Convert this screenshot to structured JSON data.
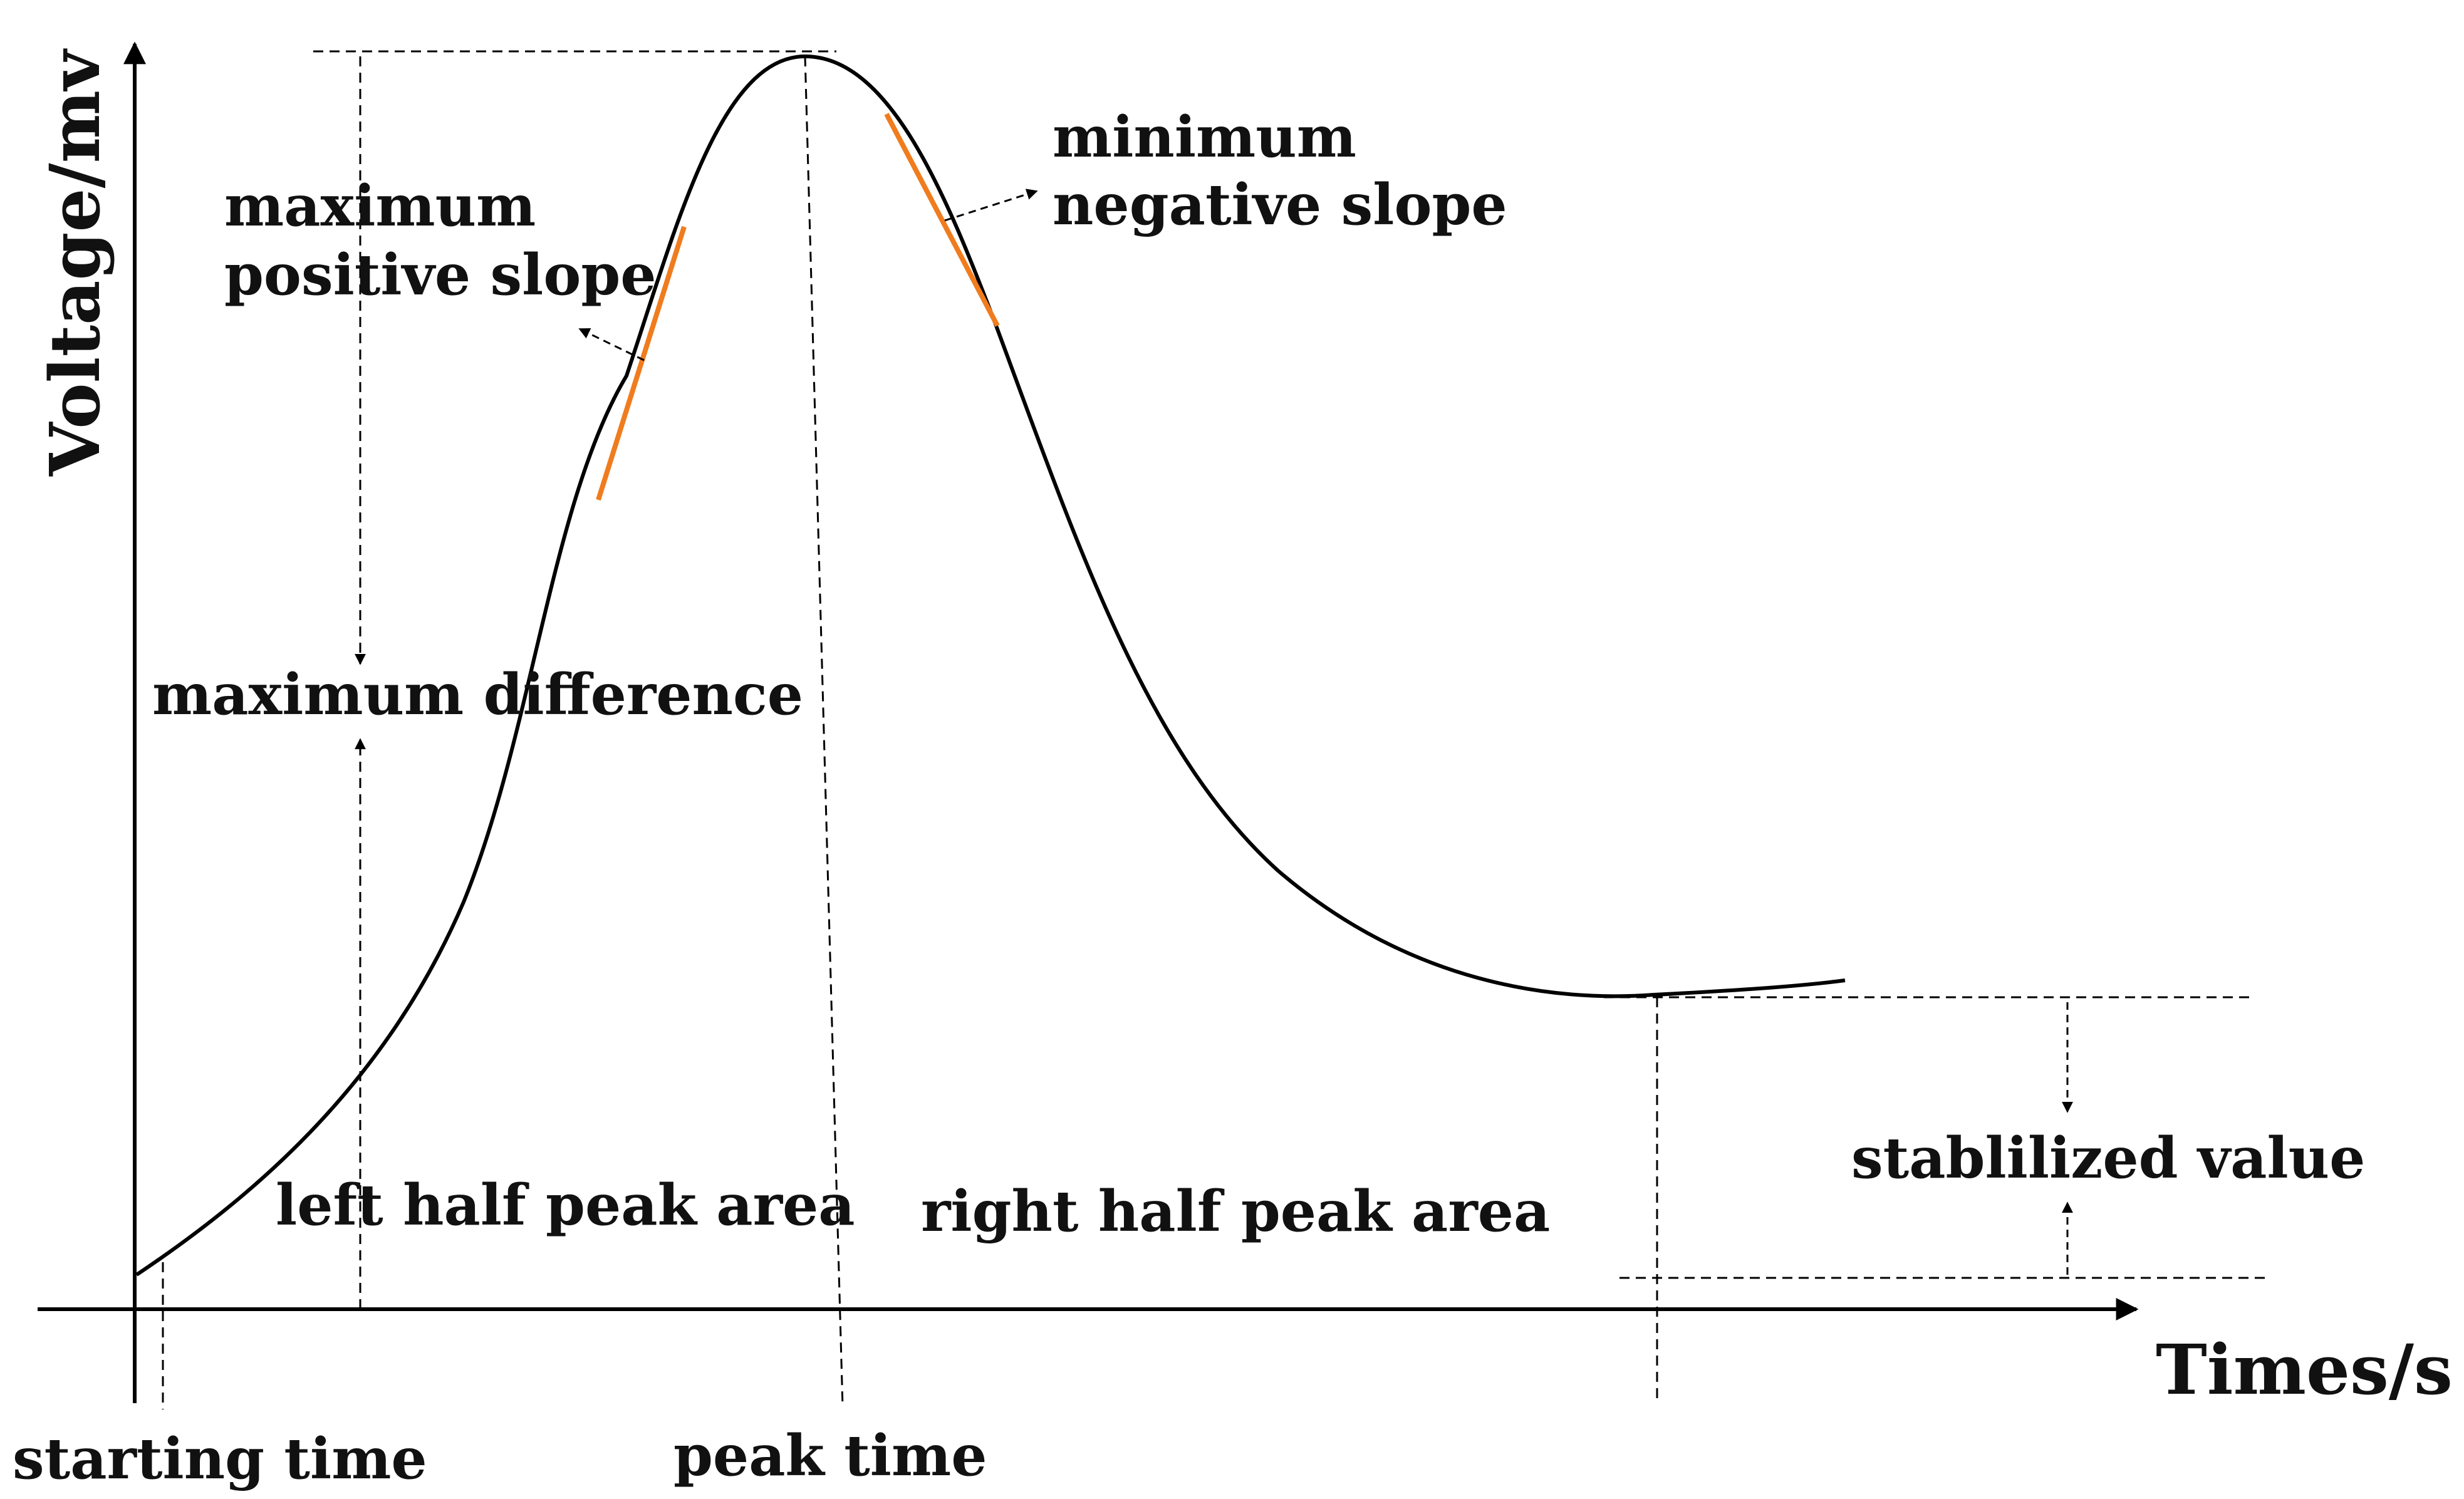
{
  "axes": {
    "y_label": "Voltage/mv",
    "x_label": "Times/s"
  },
  "labels": {
    "max_positive_slope_line1": "maximum",
    "max_positive_slope_line2": "positive slope",
    "min_negative_slope_line1": "minimum",
    "min_negative_slope_line2": "negative slope",
    "maximum_difference": "maximum difference",
    "left_half_peak_area": "left half peak area",
    "right_half_peak_area": "right half peak area",
    "stabilized_value": "stablilized value",
    "starting_time": "starting time",
    "peak_time": "peak time"
  },
  "colors": {
    "curve": "#000000",
    "slope_highlight": "#f07c1e",
    "text": "#111111"
  }
}
